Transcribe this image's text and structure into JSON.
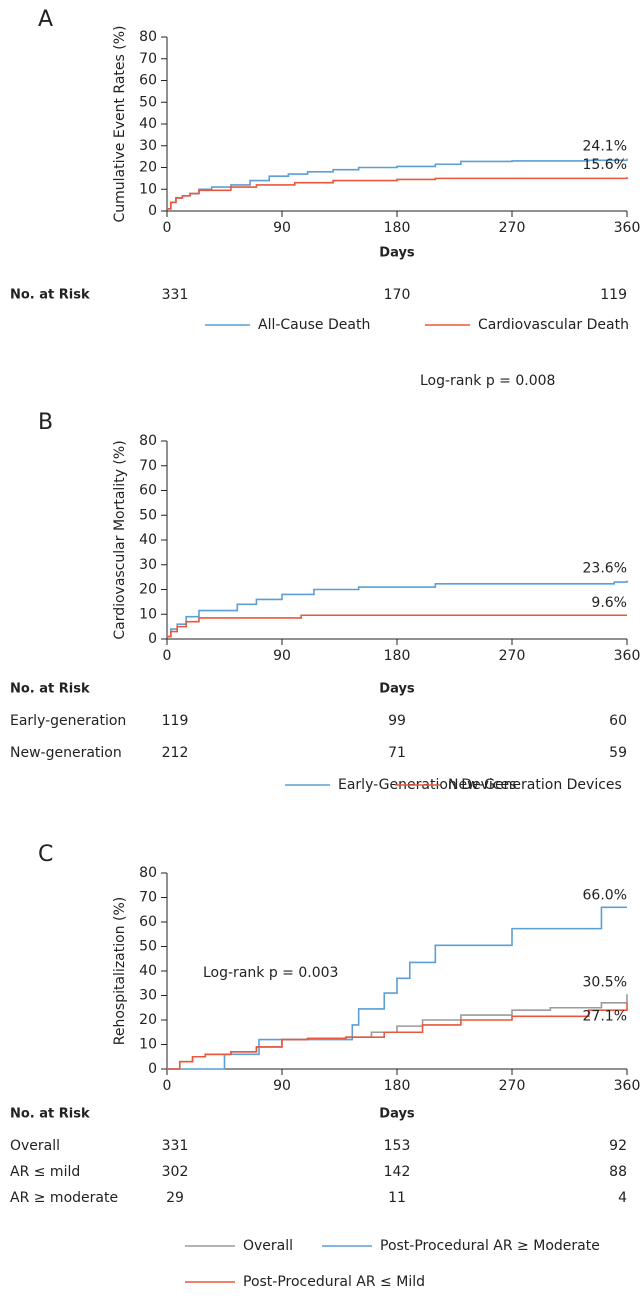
{
  "chart_data": [
    {
      "type": "line",
      "panel": "A",
      "ylabel": "Cumulative Event Rates (%)",
      "xlabel": "Days",
      "step": true,
      "xlim": [
        0,
        360
      ],
      "xticks": [
        0,
        90,
        180,
        270,
        360
      ],
      "ylim": [
        0,
        80
      ],
      "yticks": [
        0,
        10,
        20,
        30,
        40,
        50,
        60,
        70,
        80
      ],
      "series": [
        {
          "name": "All-Cause Death",
          "color": "#5b9fd6",
          "x": [
            0,
            3,
            7,
            12,
            18,
            25,
            35,
            50,
            65,
            80,
            95,
            110,
            130,
            150,
            180,
            210,
            230,
            270,
            330,
            360
          ],
          "values": [
            1,
            4,
            6,
            7,
            8,
            10,
            11,
            12,
            14,
            16,
            17,
            18,
            19,
            20,
            20.5,
            21.5,
            22.8,
            23,
            23.3,
            24.1
          ],
          "value_labels": [
            null,
            null,
            null,
            null,
            null,
            null,
            null,
            null,
            null,
            null,
            null,
            null,
            null,
            null,
            null,
            null,
            null,
            null,
            null,
            "24.1%"
          ]
        },
        {
          "name": "Cardiovascular Death",
          "color": "#e9573c",
          "x": [
            0,
            3,
            7,
            12,
            18,
            25,
            50,
            70,
            100,
            130,
            180,
            210,
            360
          ],
          "values": [
            1,
            4,
            6,
            7,
            8,
            9.5,
            11,
            12,
            13,
            14,
            14.5,
            15,
            15.6
          ],
          "value_labels": [
            null,
            null,
            null,
            null,
            null,
            null,
            null,
            null,
            null,
            null,
            null,
            null,
            "15.6%"
          ]
        }
      ],
      "risk_table": {
        "title": "No. at Risk",
        "rows": [
          {
            "values": [
              331,
              170,
              119
            ]
          }
        ]
      }
    },
    {
      "type": "line",
      "panel": "B",
      "ylabel": "Cardiovascular Mortality (%)",
      "xlabel": "Days",
      "step": true,
      "xlim": [
        0,
        360
      ],
      "xticks": [
        0,
        90,
        180,
        270,
        360
      ],
      "ylim": [
        0,
        80
      ],
      "yticks": [
        0,
        10,
        20,
        30,
        40,
        50,
        60,
        70,
        80
      ],
      "annotation": "Log-rank p = 0.008",
      "series": [
        {
          "name": "Early-Generation Devices",
          "color": "#5b9fd6",
          "x": [
            0,
            3,
            8,
            15,
            25,
            55,
            70,
            90,
            115,
            150,
            210,
            350,
            360
          ],
          "values": [
            1,
            4,
            6,
            9,
            11.5,
            14,
            16,
            18,
            20,
            21,
            22.3,
            23,
            23.6
          ],
          "value_labels": [
            null,
            null,
            null,
            null,
            null,
            null,
            null,
            null,
            null,
            null,
            null,
            null,
            "23.6%"
          ]
        },
        {
          "name": "New-Generation Devices",
          "color": "#e9573c",
          "x": [
            0,
            3,
            8,
            15,
            25,
            105,
            360
          ],
          "values": [
            1,
            3,
            5,
            7,
            8.5,
            9.6,
            9.6
          ],
          "value_labels": [
            null,
            null,
            null,
            null,
            null,
            null,
            "9.6%"
          ]
        }
      ],
      "risk_table": {
        "title": "No. at Risk",
        "rows": [
          {
            "label": "Early-generation",
            "values": [
              119,
              99,
              60
            ]
          },
          {
            "label": "New-generation",
            "values": [
              212,
              71,
              59
            ]
          }
        ]
      }
    },
    {
      "type": "line",
      "panel": "C",
      "ylabel": "Rehospitalization (%)",
      "xlabel": "Days",
      "step": true,
      "xlim": [
        0,
        360
      ],
      "xticks": [
        0,
        90,
        180,
        270,
        360
      ],
      "ylim": [
        0,
        80
      ],
      "yticks": [
        0,
        10,
        20,
        30,
        40,
        50,
        60,
        70,
        80
      ],
      "annotation": "Log-rank p = 0.003",
      "series": [
        {
          "name": "Overall",
          "color": "#9b9b9b",
          "x": [
            0,
            10,
            20,
            30,
            50,
            70,
            90,
            110,
            140,
            160,
            180,
            200,
            230,
            270,
            300,
            340,
            360
          ],
          "values": [
            0,
            3,
            5,
            6,
            7,
            9,
            12,
            12.5,
            13,
            15,
            17.5,
            20,
            22,
            24,
            25,
            27,
            30.5
          ],
          "value_labels": [
            null,
            null,
            null,
            null,
            null,
            null,
            null,
            null,
            null,
            null,
            null,
            null,
            null,
            null,
            null,
            null,
            "30.5%"
          ]
        },
        {
          "name": "Post-Procedural AR ≥ Moderate",
          "color": "#5b9fd6",
          "x": [
            0,
            45,
            72,
            145,
            150,
            170,
            180,
            190,
            210,
            270,
            340,
            360
          ],
          "values": [
            0,
            6,
            12,
            18,
            24.5,
            31,
            37,
            43.5,
            50.5,
            57.3,
            66,
            66
          ],
          "value_labels": [
            null,
            null,
            null,
            null,
            null,
            null,
            null,
            null,
            null,
            null,
            null,
            "66.0%"
          ]
        },
        {
          "name": "Post-Procedural AR ≤ Mild",
          "color": "#e9573c",
          "x": [
            0,
            10,
            20,
            30,
            50,
            70,
            90,
            110,
            140,
            170,
            200,
            230,
            270,
            330,
            360
          ],
          "values": [
            0,
            3,
            5,
            6,
            7,
            9,
            12,
            12.5,
            13,
            15,
            18,
            20,
            21.5,
            24,
            27.1
          ],
          "value_labels": [
            null,
            null,
            null,
            null,
            null,
            null,
            null,
            null,
            null,
            null,
            null,
            null,
            null,
            null,
            "27.1%"
          ]
        }
      ],
      "risk_table": {
        "title": "No. at Risk",
        "rows": [
          {
            "label": "Overall",
            "values": [
              331,
              153,
              92
            ]
          },
          {
            "label": "AR ≤ mild",
            "values": [
              302,
              142,
              88
            ]
          },
          {
            "label": "AR ≥ moderate",
            "values": [
              29,
              11,
              4
            ]
          }
        ]
      }
    }
  ]
}
